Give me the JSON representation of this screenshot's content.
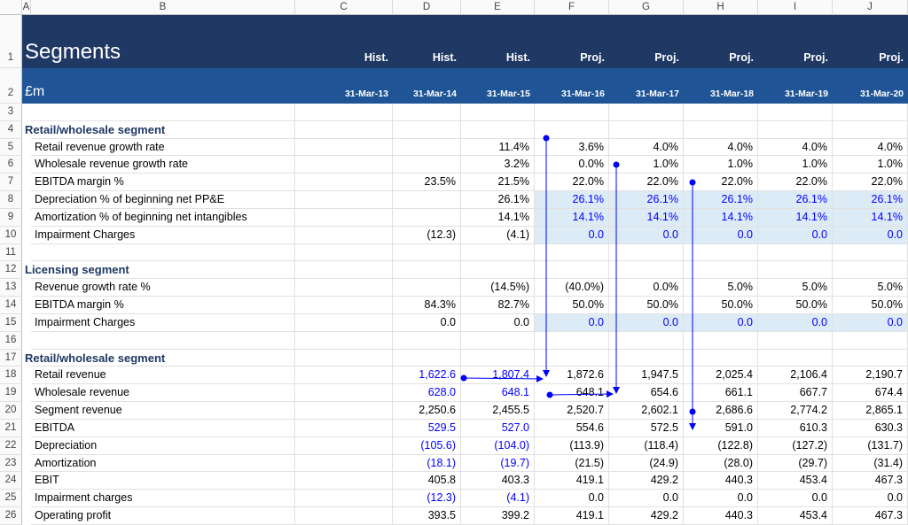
{
  "column_letters": [
    "A",
    "B",
    "C",
    "D",
    "E",
    "F",
    "G",
    "H",
    "I",
    "J"
  ],
  "row_numbers": [
    1,
    2,
    3,
    4,
    5,
    6,
    7,
    8,
    9,
    10,
    11,
    12,
    13,
    14,
    15,
    16,
    17,
    18,
    19,
    20,
    21,
    22,
    23,
    24,
    25,
    26
  ],
  "title": "Segments",
  "unit": "£m",
  "period_types": [
    "Hist.",
    "Hist.",
    "Hist.",
    "Proj.",
    "Proj.",
    "Proj.",
    "Proj.",
    "Proj."
  ],
  "dates": [
    "31-Mar-13",
    "31-Mar-14",
    "31-Mar-15",
    "31-Mar-16",
    "31-Mar-17",
    "31-Mar-18",
    "31-Mar-19",
    "31-Mar-20"
  ],
  "rows": [
    null,
    {
      "heading": "Retail/wholesale segment"
    },
    {
      "label": "Retail revenue growth rate",
      "cells": [
        null,
        null,
        "11.4%",
        "3.6%",
        "4.0%",
        "4.0%",
        "4.0%",
        "4.0%"
      ]
    },
    {
      "label": "Wholesale revenue growth rate",
      "cells": [
        null,
        null,
        "3.2%",
        "0.0%",
        "1.0%",
        "1.0%",
        "1.0%",
        "1.0%"
      ]
    },
    {
      "label": "EBITDA margin %",
      "cells": [
        null,
        "23.5%",
        "21.5%",
        "22.0%",
        "22.0%",
        "22.0%",
        "22.0%",
        "22.0%"
      ]
    },
    {
      "label": "Depreciation % of beginning net PP&E",
      "cells": [
        null,
        null,
        "26.1%",
        "26.1%",
        "26.1%",
        "26.1%",
        "26.1%",
        "26.1%"
      ]
    },
    {
      "label": "Amortization % of beginning net intangibles",
      "cells": [
        null,
        null,
        "14.1%",
        "14.1%",
        "14.1%",
        "14.1%",
        "14.1%",
        "14.1%"
      ]
    },
    {
      "label": "Impairment Charges",
      "cells": [
        null,
        "(12.3)",
        "(4.1)",
        "0.0",
        "0.0",
        "0.0",
        "0.0",
        "0.0"
      ]
    },
    null,
    {
      "heading": "Licensing segment"
    },
    {
      "label": "Revenue growth rate %",
      "cells": [
        null,
        null,
        "(14.5%)",
        "(40.0%)",
        "0.0%",
        "5.0%",
        "5.0%",
        "5.0%"
      ]
    },
    {
      "label": "EBITDA margin %",
      "cells": [
        null,
        "84.3%",
        "82.7%",
        "50.0%",
        "50.0%",
        "50.0%",
        "50.0%",
        "50.0%"
      ]
    },
    {
      "label": "Impairment Charges",
      "cells": [
        null,
        "0.0",
        "0.0",
        "0.0",
        "0.0",
        "0.0",
        "0.0",
        "0.0"
      ]
    },
    null,
    {
      "heading": "Retail/wholesale segment"
    },
    {
      "label": "Retail revenue",
      "cells": [
        null,
        "1,622.6",
        "1,807.4",
        "1,872.6",
        "1,947.5",
        "2,025.4",
        "2,106.4",
        "2,190.7"
      ]
    },
    {
      "label": "Wholesale revenue",
      "cells": [
        null,
        "628.0",
        "648.1",
        "648.1",
        "654.6",
        "661.1",
        "667.7",
        "674.4"
      ]
    },
    {
      "label": "Segment revenue",
      "cells": [
        null,
        "2,250.6",
        "2,455.5",
        "2,520.7",
        "2,602.1",
        "2,686.6",
        "2,774.2",
        "2,865.1"
      ]
    },
    {
      "label": "EBITDA",
      "cells": [
        null,
        "529.5",
        "527.0",
        "554.6",
        "572.5",
        "591.0",
        "610.3",
        "630.3"
      ]
    },
    {
      "label": "Depreciation",
      "cells": [
        null,
        "(105.6)",
        "(104.0)",
        "(113.9)",
        "(118.4)",
        "(122.8)",
        "(127.2)",
        "(131.7)"
      ]
    },
    {
      "label": "Amortization",
      "cells": [
        null,
        "(18.1)",
        "(19.7)",
        "(21.5)",
        "(24.9)",
        "(28.0)",
        "(29.7)",
        "(31.4)"
      ]
    },
    {
      "label": "EBIT",
      "cells": [
        null,
        "405.8",
        "403.3",
        "419.1",
        "429.2",
        "440.3",
        "453.4",
        "467.3"
      ]
    },
    {
      "label": "Impairment charges",
      "cells": [
        null,
        "(12.3)",
        "(4.1)",
        "0.0",
        "0.0",
        "0.0",
        "0.0",
        "0.0"
      ]
    },
    {
      "label": "Operating profit",
      "cells": [
        null,
        "393.5",
        "399.2",
        "419.1",
        "429.2",
        "440.3",
        "453.4",
        "467.3"
      ]
    }
  ]
}
